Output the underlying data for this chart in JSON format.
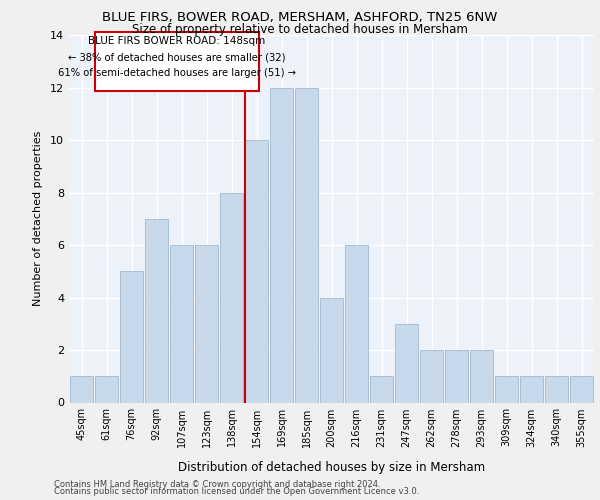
{
  "title1": "BLUE FIRS, BOWER ROAD, MERSHAM, ASHFORD, TN25 6NW",
  "title2": "Size of property relative to detached houses in Mersham",
  "xlabel": "Distribution of detached houses by size in Mersham",
  "ylabel": "Number of detached properties",
  "categories": [
    "45sqm",
    "61sqm",
    "76sqm",
    "92sqm",
    "107sqm",
    "123sqm",
    "138sqm",
    "154sqm",
    "169sqm",
    "185sqm",
    "200sqm",
    "216sqm",
    "231sqm",
    "247sqm",
    "262sqm",
    "278sqm",
    "293sqm",
    "309sqm",
    "324sqm",
    "340sqm",
    "355sqm"
  ],
  "values": [
    1,
    1,
    5,
    7,
    6,
    6,
    8,
    10,
    12,
    12,
    4,
    6,
    1,
    3,
    2,
    2,
    2,
    1,
    1,
    1,
    1
  ],
  "bar_color": "#c9d9ec",
  "bar_edge_color": "#a8bfd4",
  "vline_color": "#cc0000",
  "annotation_title": "BLUE FIRS BOWER ROAD: 148sqm",
  "annotation_line1": "← 38% of detached houses are smaller (32)",
  "annotation_line2": "61% of semi-detached houses are larger (51) →",
  "annotation_box_color": "#ffffff",
  "annotation_box_edge": "#cc0000",
  "ylim": [
    0,
    14
  ],
  "yticks": [
    0,
    2,
    4,
    6,
    8,
    10,
    12,
    14
  ],
  "background_color": "#edf1f9",
  "grid_color": "#ffffff",
  "footer1": "Contains HM Land Registry data © Crown copyright and database right 2024.",
  "footer2": "Contains public sector information licensed under the Open Government Licence v3.0."
}
